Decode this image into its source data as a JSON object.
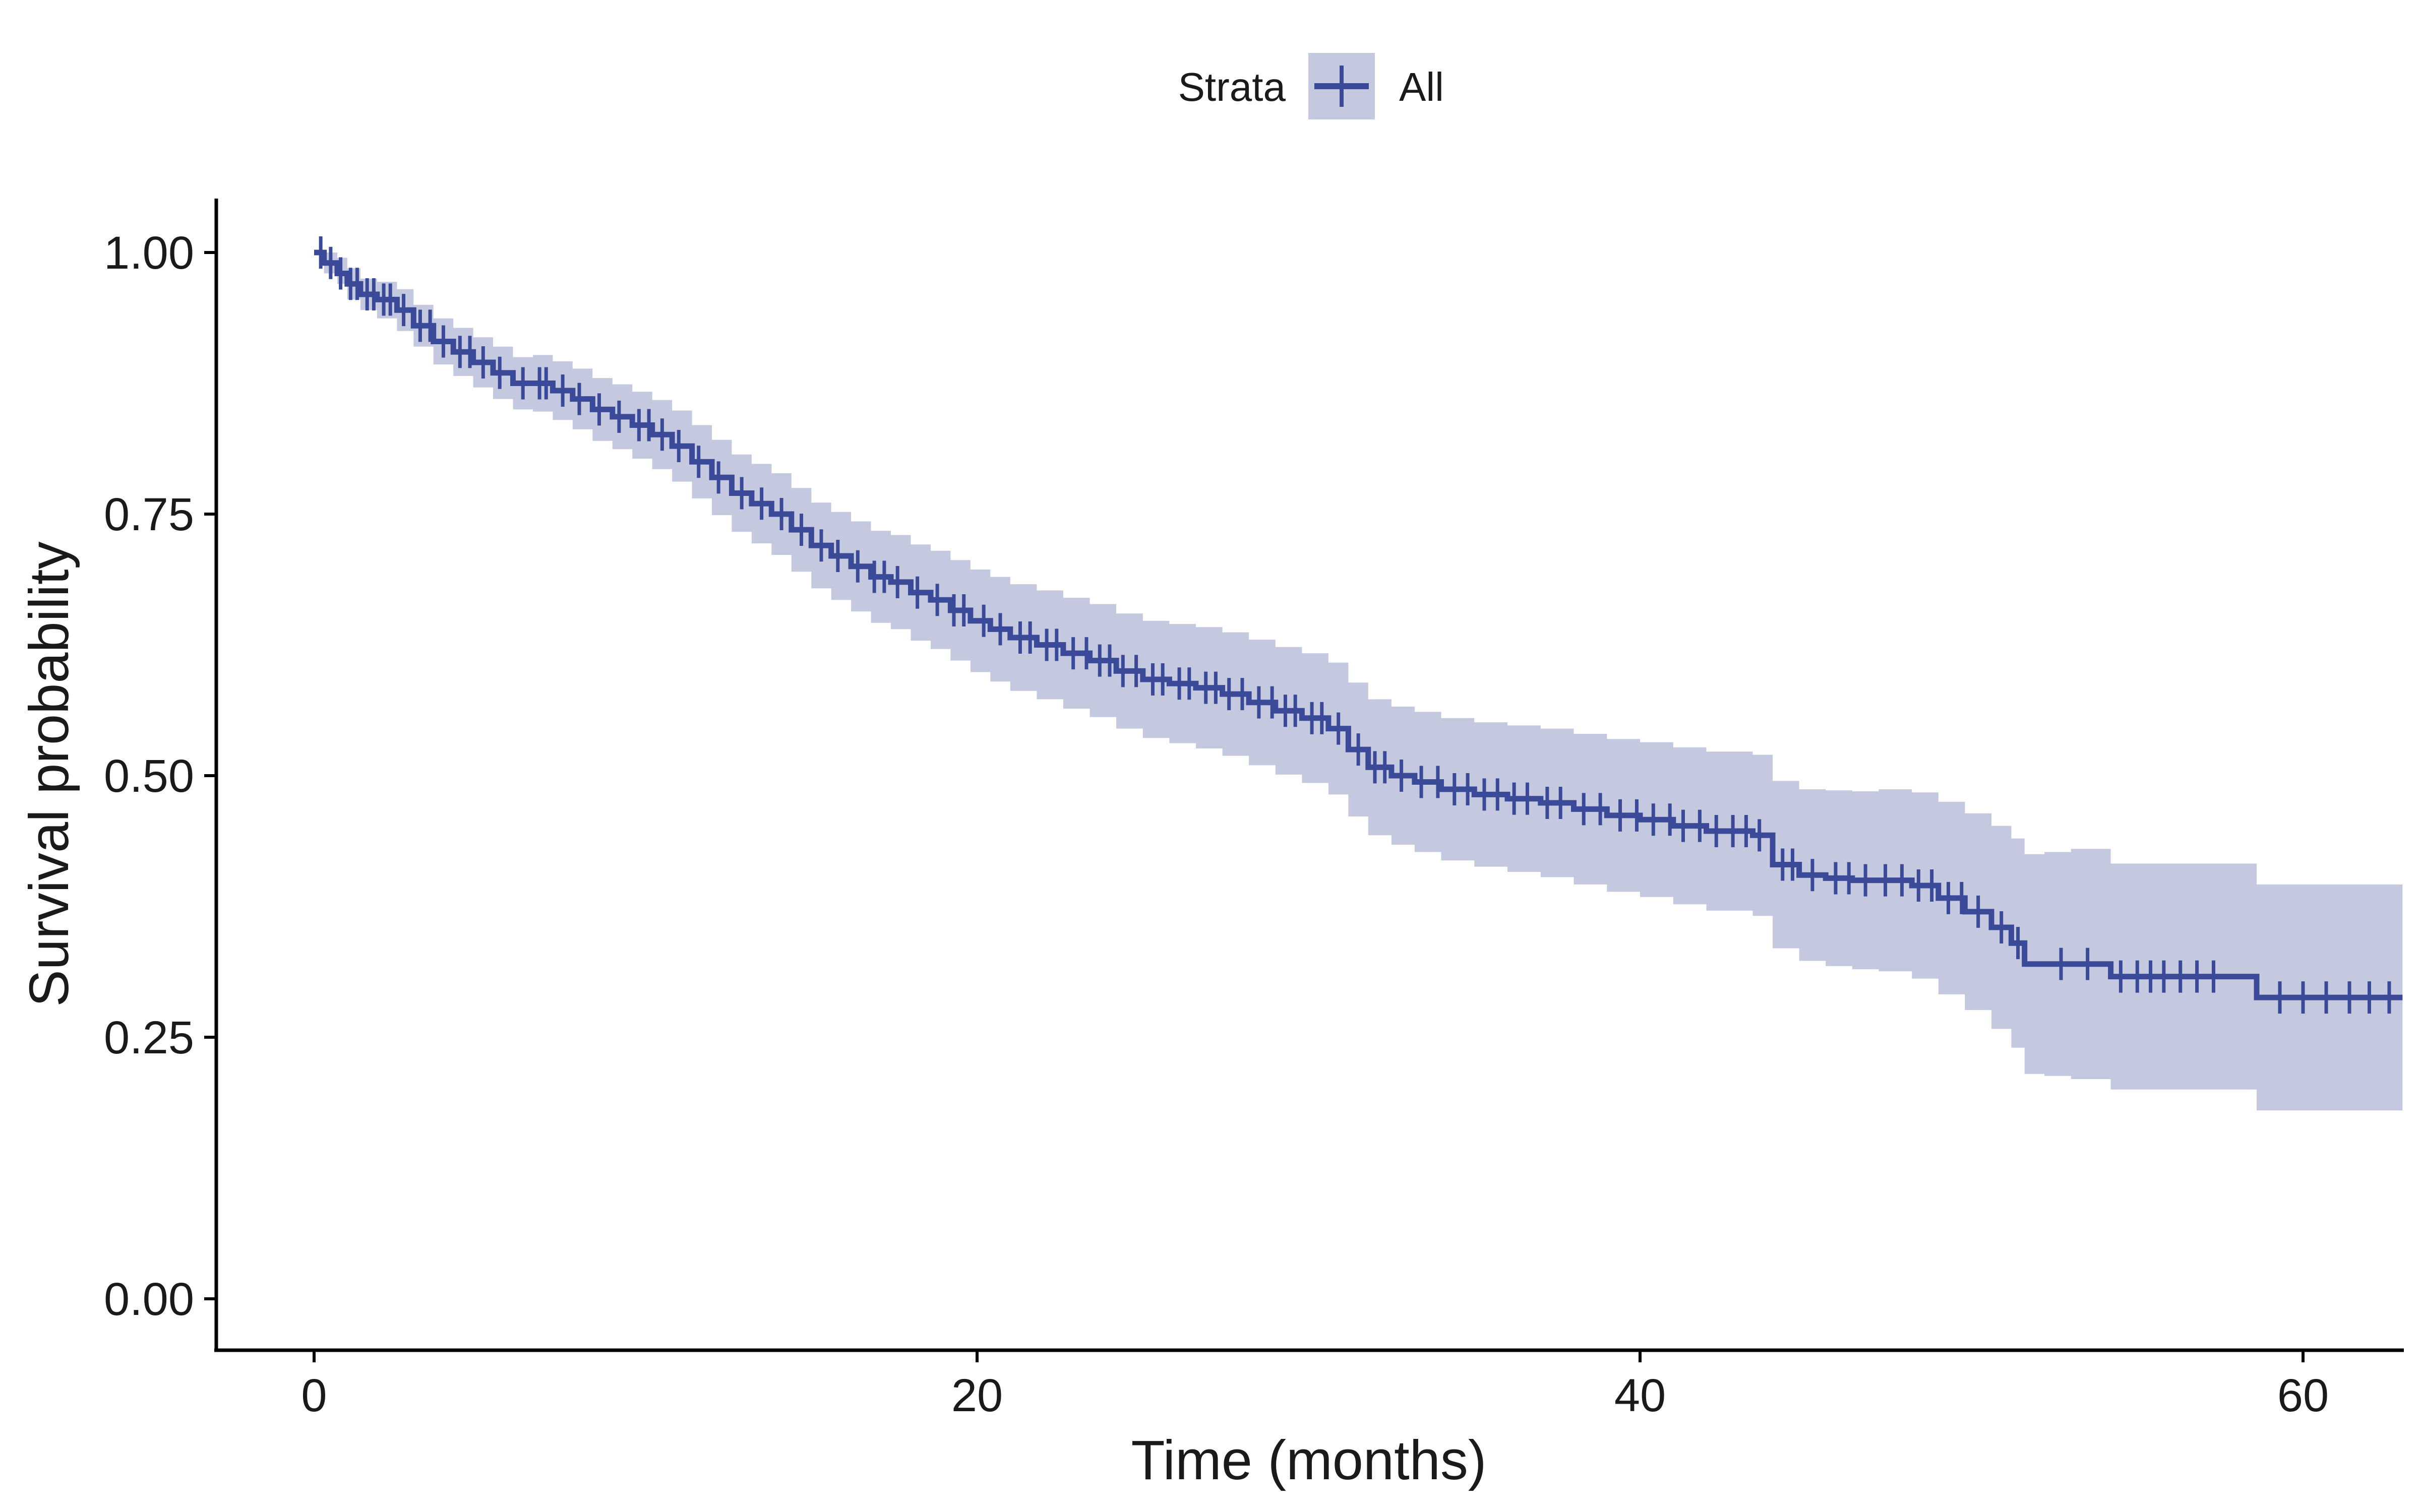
{
  "chart_data": {
    "type": "line",
    "subtype": "kaplan-meier survival curve with confidence band and censor marks",
    "xlabel": "Time (months)",
    "ylabel": "Survival probability",
    "xlim": [
      -3,
      63
    ],
    "ylim": [
      -0.05,
      1.05
    ],
    "x_ticks": [
      0,
      20,
      40,
      60
    ],
    "x_tick_labels": [
      "0",
      "20",
      "40",
      "60"
    ],
    "y_ticks": [
      0,
      0.25,
      0.5,
      0.75,
      1.0
    ],
    "y_tick_labels": [
      "0.00",
      "0.25",
      "0.50",
      "0.75",
      "1.00"
    ],
    "grid": false,
    "legend": {
      "position": "top",
      "title": "Strata",
      "entries": [
        "All"
      ]
    },
    "colors": {
      "line": "#3a4a98",
      "band": "#c4c9e0",
      "axis": "#000000"
    },
    "series": [
      {
        "name": "All",
        "step": true,
        "x": [
          0,
          0.3,
          0.7,
          1.0,
          1.4,
          1.9,
          2.5,
          3.0,
          3.6,
          4.2,
          4.8,
          5.4,
          6.0,
          6.6,
          7.2,
          7.8,
          8.4,
          9.0,
          9.6,
          10.2,
          10.8,
          11.4,
          12.0,
          12.6,
          13.2,
          13.8,
          14.4,
          15.0,
          15.6,
          16.2,
          16.8,
          17.4,
          18.0,
          18.6,
          19.2,
          19.8,
          20.4,
          21.0,
          21.8,
          22.6,
          23.4,
          24.2,
          25.0,
          25.8,
          26.6,
          27.4,
          28.2,
          29.0,
          29.8,
          30.6,
          31.2,
          31.8,
          32.5,
          33.2,
          34.0,
          35.0,
          36.0,
          37.0,
          38.0,
          39.0,
          40.0,
          41.0,
          42.0,
          43.4,
          44.0,
          44.8,
          45.6,
          46.4,
          47.2,
          48.2,
          49.0,
          49.8,
          50.6,
          51.2,
          51.6,
          52.2,
          53.0,
          54.2,
          58.6,
          62.8
        ],
        "values": [
          1.0,
          0.99,
          0.98,
          0.97,
          0.96,
          0.955,
          0.945,
          0.93,
          0.915,
          0.905,
          0.895,
          0.885,
          0.875,
          0.875,
          0.868,
          0.86,
          0.85,
          0.843,
          0.835,
          0.826,
          0.815,
          0.8,
          0.785,
          0.77,
          0.76,
          0.75,
          0.735,
          0.72,
          0.71,
          0.7,
          0.69,
          0.685,
          0.675,
          0.668,
          0.658,
          0.648,
          0.64,
          0.632,
          0.625,
          0.617,
          0.61,
          0.6,
          0.592,
          0.588,
          0.584,
          0.578,
          0.57,
          0.562,
          0.555,
          0.545,
          0.525,
          0.508,
          0.5,
          0.494,
          0.487,
          0.482,
          0.478,
          0.474,
          0.468,
          0.462,
          0.458,
          0.452,
          0.447,
          0.443,
          0.415,
          0.405,
          0.402,
          0.4,
          0.4,
          0.395,
          0.383,
          0.37,
          0.355,
          0.34,
          0.32,
          0.32,
          0.32,
          0.308,
          0.288,
          0.288
        ],
        "ci_lower": [
          1.0,
          0.98,
          0.97,
          0.955,
          0.945,
          0.937,
          0.925,
          0.91,
          0.893,
          0.882,
          0.871,
          0.86,
          0.85,
          0.848,
          0.84,
          0.831,
          0.82,
          0.812,
          0.803,
          0.793,
          0.781,
          0.765,
          0.749,
          0.733,
          0.722,
          0.711,
          0.695,
          0.679,
          0.668,
          0.657,
          0.646,
          0.64,
          0.629,
          0.621,
          0.61,
          0.599,
          0.59,
          0.581,
          0.573,
          0.564,
          0.556,
          0.545,
          0.536,
          0.531,
          0.526,
          0.519,
          0.51,
          0.501,
          0.493,
          0.482,
          0.461,
          0.443,
          0.434,
          0.427,
          0.419,
          0.413,
          0.408,
          0.403,
          0.396,
          0.389,
          0.384,
          0.377,
          0.371,
          0.366,
          0.335,
          0.323,
          0.318,
          0.315,
          0.313,
          0.306,
          0.291,
          0.276,
          0.258,
          0.24,
          0.215,
          0.213,
          0.21,
          0.2,
          0.18,
          0.18
        ],
        "ci_upper": [
          1.0,
          1.0,
          0.995,
          0.985,
          0.975,
          0.972,
          0.965,
          0.95,
          0.937,
          0.928,
          0.919,
          0.91,
          0.9,
          0.902,
          0.896,
          0.889,
          0.88,
          0.874,
          0.867,
          0.859,
          0.849,
          0.835,
          0.821,
          0.807,
          0.798,
          0.789,
          0.775,
          0.761,
          0.752,
          0.743,
          0.734,
          0.73,
          0.721,
          0.715,
          0.706,
          0.697,
          0.69,
          0.683,
          0.677,
          0.67,
          0.664,
          0.655,
          0.648,
          0.645,
          0.642,
          0.637,
          0.63,
          0.623,
          0.617,
          0.608,
          0.589,
          0.573,
          0.566,
          0.561,
          0.555,
          0.551,
          0.548,
          0.545,
          0.54,
          0.535,
          0.532,
          0.527,
          0.523,
          0.52,
          0.495,
          0.487,
          0.486,
          0.485,
          0.487,
          0.484,
          0.475,
          0.464,
          0.452,
          0.44,
          0.425,
          0.427,
          0.43,
          0.416,
          0.396,
          0.396
        ],
        "censor_times": [
          0.2,
          0.5,
          0.8,
          1.1,
          1.3,
          1.6,
          1.8,
          2.1,
          2.3,
          2.7,
          3.2,
          3.5,
          3.9,
          4.4,
          4.7,
          5.1,
          5.6,
          6.3,
          6.8,
          7.0,
          7.5,
          8.0,
          8.6,
          9.2,
          9.8,
          10.1,
          10.5,
          11.0,
          11.6,
          12.2,
          12.9,
          13.5,
          14.1,
          14.7,
          15.3,
          15.8,
          16.4,
          16.9,
          17.2,
          17.6,
          18.2,
          18.8,
          19.3,
          19.6,
          20.2,
          20.7,
          21.3,
          21.6,
          22.1,
          22.4,
          22.9,
          23.3,
          23.7,
          24.0,
          24.4,
          24.8,
          25.3,
          25.6,
          26.1,
          26.4,
          26.9,
          27.2,
          27.6,
          28.0,
          28.5,
          28.9,
          29.3,
          29.6,
          30.1,
          30.4,
          30.9,
          31.5,
          32.0,
          32.3,
          32.8,
          33.4,
          33.9,
          34.4,
          34.8,
          35.3,
          35.7,
          36.2,
          36.6,
          37.2,
          37.6,
          38.3,
          38.8,
          39.4,
          39.9,
          40.4,
          40.9,
          41.3,
          41.8,
          42.3,
          42.8,
          43.2,
          43.6,
          44.3,
          44.6,
          45.2,
          45.9,
          46.3,
          46.8,
          47.4,
          47.9,
          48.4,
          48.8,
          49.3,
          49.7,
          50.2,
          50.9,
          51.4,
          52.7,
          53.5,
          54.5,
          55.0,
          55.4,
          55.8,
          56.3,
          56.8,
          57.3,
          59.3,
          60.0,
          60.7,
          61.4,
          62.0,
          62.6
        ]
      }
    ]
  }
}
